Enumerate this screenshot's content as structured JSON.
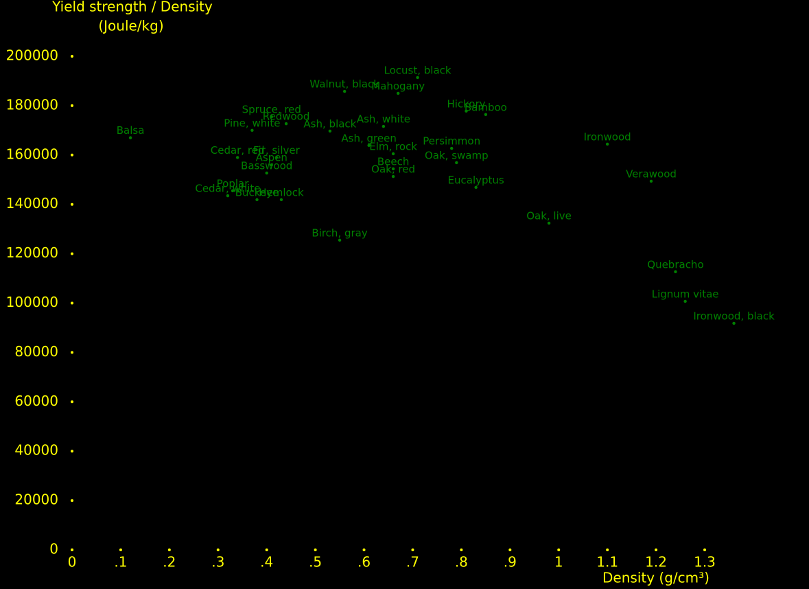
{
  "chart_data": {
    "type": "scatter",
    "y_label": [
      "Yield strength / Density",
      "(Joule/kg)"
    ],
    "x_label": "Density (g/cm³)",
    "xlim": [
      0,
      1.3
    ],
    "ylim": [
      0,
      200000
    ],
    "xticks": [
      0,
      {
        "value": 0.1,
        "label": ".1"
      },
      {
        "value": 0.2,
        "label": ".2"
      },
      {
        "value": 0.3,
        "label": ".3"
      },
      {
        "value": 0.4,
        "label": ".4"
      },
      {
        "value": 0.5,
        "label": ".5"
      },
      {
        "value": 0.6,
        "label": ".6"
      },
      {
        "value": 0.7,
        "label": ".7"
      },
      {
        "value": 0.8,
        "label": ".8"
      },
      {
        "value": 0.9,
        "label": ".9"
      },
      1,
      1.1,
      1.2,
      1.3
    ],
    "yticks": [
      0,
      20000,
      40000,
      60000,
      80000,
      100000,
      120000,
      140000,
      160000,
      180000,
      200000
    ],
    "tick_color": "#ffff00",
    "series": [
      {
        "color": "#008000",
        "point_labels": [
          "Balsa",
          "Cedar, red",
          "Fir, silver",
          "Aspen",
          "Basswood",
          "Spruce, red",
          "Redwood",
          "Pine, white",
          "Ash, black",
          "Walnut, black",
          "Mahogany",
          "Locust, black",
          "Ash, white",
          "Ash, green",
          "Elm, rock",
          "Beech",
          "Oak, red",
          "Persimmon",
          "Oak, swamp",
          "Eucalyptus",
          "Hickory",
          "Bamboo",
          "Ironwood",
          "Verawood",
          "Oak, live",
          "Quebracho",
          "Lignum vitae",
          "Ironwood, black",
          "Birch, gray",
          "Poplar",
          "Cedar, white",
          "Buckeye",
          "Hemlock"
        ],
        "x": [
          0.12,
          0.34,
          0.42,
          0.41,
          0.4,
          0.41,
          0.44,
          0.37,
          0.53,
          0.56,
          0.67,
          0.71,
          0.64,
          0.61,
          0.66,
          0.66,
          0.66,
          0.78,
          0.79,
          0.83,
          0.81,
          0.85,
          1.1,
          1.19,
          0.98,
          1.24,
          1.26,
          1.36,
          0.55,
          0.33,
          0.32,
          0.38,
          0.43
        ],
        "values": [
          167000,
          159000,
          159000,
          156000,
          152700,
          175500,
          172700,
          170000,
          169700,
          185800,
          185000,
          191400,
          171600,
          163900,
          160500,
          154400,
          151300,
          162700,
          156900,
          146900,
          177800,
          176400,
          164400,
          149400,
          132400,
          112700,
          100700,
          91800,
          125500,
          145500,
          143500,
          141900,
          141900
        ]
      }
    ]
  }
}
